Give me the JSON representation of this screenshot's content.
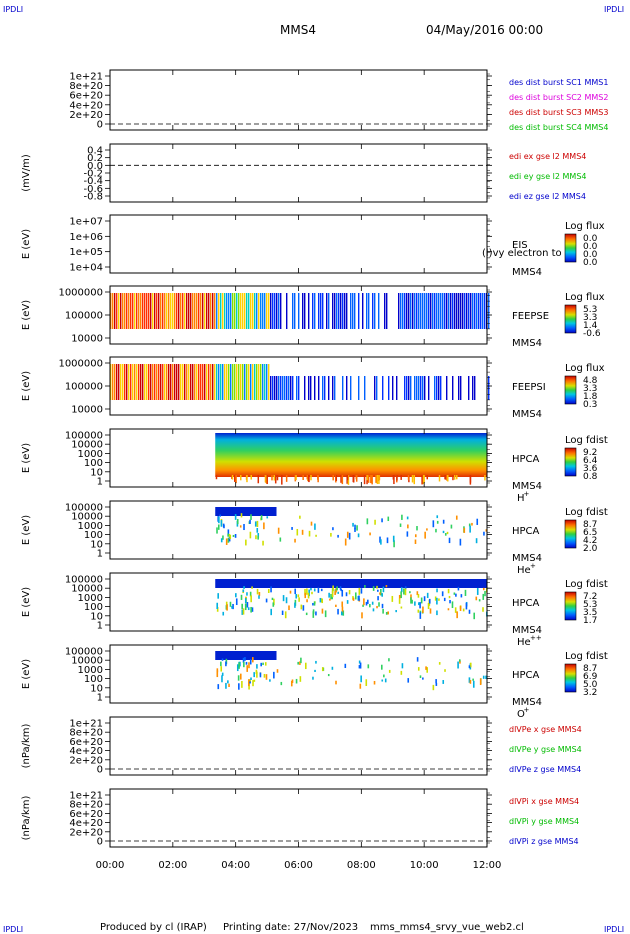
{
  "header": {
    "corner_tl": "IPDLI",
    "corner_tr": "IPDLI",
    "corner_bl": "IPDLI",
    "corner_br": "IPDLI",
    "spacecraft": "MMS4",
    "date": "04/May/2016 00:00"
  },
  "footer": {
    "produced_by": "Produced by cl (IRAP)",
    "printing_date": "Printing date: 27/Nov/2023",
    "script": "mms_mms4_srvy_vue_web2.cl"
  },
  "colors": {
    "blue": "#0000cc",
    "magenta": "#dd00dd",
    "red": "#cc0000",
    "green": "#00bb00"
  },
  "chart_data": [
    {
      "type": "line",
      "ylabel": "",
      "yticks": [
        "1e+21",
        "8e+20",
        "6e+20",
        "4e+20",
        "2e+20",
        "0"
      ],
      "ylim": [
        0,
        1e+21
      ],
      "zero_line": true,
      "series": [
        {
          "name": "des dist burst SC1 MMS1",
          "color": "#0000cc"
        },
        {
          "name": "des dist burst SC2 MMS2",
          "color": "#dd00dd"
        },
        {
          "name": "des dist burst SC3 MMS3",
          "color": "#cc0000"
        },
        {
          "name": "des dist burst SC4 MMS4",
          "color": "#00bb00"
        }
      ]
    },
    {
      "type": "line",
      "ylabel": "(mV/m)",
      "yticks": [
        "0.4",
        "0.2",
        "0.0",
        "-0.2",
        "-0.4",
        "-0.6",
        "-0.8"
      ],
      "ylim": [
        -0.8,
        0.4
      ],
      "zero_line": true,
      "series": [
        {
          "name": "edi ex gse l2 MMS4",
          "color": "#cc0000"
        },
        {
          "name": "edi ey gse l2 MMS4",
          "color": "#00bb00"
        },
        {
          "name": "edi ez gse l2 MMS4",
          "color": "#0000cc"
        }
      ]
    },
    {
      "type": "heatmap",
      "ylabel": "E (eV)",
      "yticks": [
        "1e+07",
        "1e+06",
        "1e+05",
        "1e+04"
      ],
      "ylim": [
        10000.0,
        10000000.0
      ],
      "instrument": "EIS",
      "instrument_extra": "(l)vy electron to",
      "spacecraft": "MMS4",
      "colorbar_title": "Log flux",
      "colorbar_ticks": [
        "0.0",
        "0.0",
        "0.0",
        "0.0"
      ]
    },
    {
      "type": "heatmap",
      "ylabel": "E (eV)",
      "yticks": [
        "1000000",
        "100000",
        "10000"
      ],
      "ylim": [
        10000,
        1000000
      ],
      "instrument": "FEEPSE",
      "spacecraft": "MMS4",
      "colorbar_title": "Log flux",
      "colorbar_ticks": [
        "5.3",
        "3.3",
        "1.4",
        "-0.6"
      ]
    },
    {
      "type": "heatmap",
      "ylabel": "E (eV)",
      "yticks": [
        "1000000",
        "100000",
        "10000"
      ],
      "ylim": [
        10000,
        1000000
      ],
      "instrument": "FEEPSI",
      "spacecraft": "MMS4",
      "colorbar_title": "Log flux",
      "colorbar_ticks": [
        "4.8",
        "3.3",
        "1.8",
        "0.3"
      ]
    },
    {
      "type": "heatmap",
      "ylabel": "E (eV)",
      "yticks": [
        "100000",
        "10000",
        "1000",
        "100",
        "10",
        "1"
      ],
      "ylim": [
        1,
        100000
      ],
      "instrument": "HPCA",
      "spacecraft": "MMS4",
      "species": "H",
      "species_sup": "+",
      "colorbar_title": "Log fdist",
      "colorbar_ticks": [
        "9.2",
        "6.4",
        "3.6",
        "0.8"
      ]
    },
    {
      "type": "heatmap",
      "ylabel": "E (eV)",
      "yticks": [
        "100000",
        "10000",
        "1000",
        "100",
        "10",
        "1"
      ],
      "ylim": [
        1,
        100000
      ],
      "instrument": "HPCA",
      "spacecraft": "MMS4",
      "species": "He",
      "species_sup": "+",
      "colorbar_title": "Log fdist",
      "colorbar_ticks": [
        "8.7",
        "6.5",
        "4.2",
        "2.0"
      ]
    },
    {
      "type": "heatmap",
      "ylabel": "E (eV)",
      "yticks": [
        "100000",
        "10000",
        "1000",
        "100",
        "10",
        "1"
      ],
      "ylim": [
        1,
        100000
      ],
      "instrument": "HPCA",
      "spacecraft": "MMS4",
      "species": "He",
      "species_sup": "++",
      "colorbar_title": "Log fdist",
      "colorbar_ticks": [
        "7.2",
        "5.3",
        "3.5",
        "1.7"
      ]
    },
    {
      "type": "heatmap",
      "ylabel": "E (eV)",
      "yticks": [
        "100000",
        "10000",
        "1000",
        "100",
        "10",
        "1"
      ],
      "ylim": [
        1,
        100000
      ],
      "instrument": "HPCA",
      "spacecraft": "MMS4",
      "species": "O",
      "species_sup": "+",
      "colorbar_title": "Log fdist",
      "colorbar_ticks": [
        "8.7",
        "6.9",
        "5.0",
        "3.2"
      ]
    },
    {
      "type": "line",
      "ylabel": "(nPa/km)",
      "yticks": [
        "1e+21",
        "8e+20",
        "6e+20",
        "4e+20",
        "2e+20",
        "0"
      ],
      "ylim": [
        0,
        1e+21
      ],
      "zero_line": true,
      "series": [
        {
          "name": "dlVPe x gse MMS4",
          "color": "#cc0000"
        },
        {
          "name": "dlVPe y gse MMS4",
          "color": "#00bb00"
        },
        {
          "name": "dlVPe z gse MMS4",
          "color": "#0000cc"
        }
      ]
    },
    {
      "type": "line",
      "ylabel": "(nPa/km)",
      "yticks": [
        "1e+21",
        "8e+20",
        "6e+20",
        "4e+20",
        "2e+20",
        "0"
      ],
      "ylim": [
        0,
        1e+21
      ],
      "zero_line": true,
      "series": [
        {
          "name": "dlVPi x gse MMS4",
          "color": "#cc0000"
        },
        {
          "name": "dlVPi y gse MMS4",
          "color": "#00bb00"
        },
        {
          "name": "dlVPi z gse MMS4",
          "color": "#0000cc"
        }
      ]
    }
  ],
  "xaxis": {
    "ticks": [
      "00:00",
      "02:00",
      "04:00",
      "06:00",
      "08:00",
      "10:00",
      "12:00"
    ],
    "range_hours": [
      0,
      12
    ]
  }
}
